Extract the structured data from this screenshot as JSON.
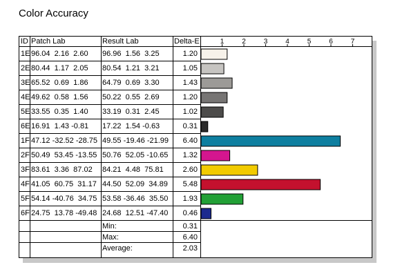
{
  "title": "Color Accuracy",
  "headers": {
    "id": "ID",
    "patch": "Patch Lab",
    "result": "Result Lab",
    "delta": "Delta-E"
  },
  "rows": [
    {
      "id": "1E",
      "patch": "96.04  2.16  2.60",
      "result": "96.96  1.56  3.25",
      "delta": "1.20",
      "color": "#f7f2ea"
    },
    {
      "id": "2E",
      "patch": "80.44  1.17  2.05",
      "result": "80.54  1.21  3.21",
      "delta": "1.05",
      "color": "#c6c4c1"
    },
    {
      "id": "3E",
      "patch": "65.52  0.69  1.86",
      "result": "64.79  0.69  3.30",
      "delta": "1.43",
      "color": "#9c9a97"
    },
    {
      "id": "4E",
      "patch": "49.62  0.58  1.56",
      "result": "50.22  0.55  2.69",
      "delta": "1.20",
      "color": "#777574"
    },
    {
      "id": "5E",
      "patch": "33.55  0.35  1.40",
      "result": "33.19  0.31  2.45",
      "delta": "1.02",
      "color": "#4c4b4a"
    },
    {
      "id": "6E",
      "patch": "16.91  1.43 -0.81",
      "result": "17.22  1.54 -0.63",
      "delta": "0.31",
      "color": "#2a2a2a"
    },
    {
      "id": "1F",
      "patch": "47.12 -32.52 -28.75",
      "result": "49.55 -19.46 -21.99",
      "delta": "6.40",
      "color": "#0e7fa0"
    },
    {
      "id": "2F",
      "patch": "50.49  53.45 -13.55",
      "result": "50.76  52.05 -10.65",
      "delta": "1.32",
      "color": "#d4168f"
    },
    {
      "id": "3F",
      "patch": "83.61  3.36  87.02",
      "result": "84.21  4.48  75.81",
      "delta": "2.60",
      "color": "#f2cb00"
    },
    {
      "id": "4F",
      "patch": "41.05  60.75  31.17",
      "result": "44.50  52.09  34.89",
      "delta": "5.48",
      "color": "#c4112e"
    },
    {
      "id": "5F",
      "patch": "54.14 -40.76  34.75",
      "result": "53.58 -36.46  35.50",
      "delta": "1.93",
      "color": "#22a036"
    },
    {
      "id": "6F",
      "patch": "24.75  13.78 -49.48",
      "result": "24.68  12.51 -47.40",
      "delta": "0.46",
      "color": "#1c2a8f"
    }
  ],
  "summary": [
    {
      "label": "Min:",
      "value": "0.31"
    },
    {
      "label": "Max:",
      "value": "6.40"
    },
    {
      "label": "Average:",
      "value": "2.03"
    }
  ],
  "chart_data": {
    "type": "bar",
    "orientation": "horizontal",
    "title": "Color Accuracy",
    "categories": [
      "1E",
      "2E",
      "3E",
      "4E",
      "5E",
      "6E",
      "1F",
      "2F",
      "3F",
      "4F",
      "5F",
      "6F"
    ],
    "values": [
      1.2,
      1.05,
      1.43,
      1.2,
      1.02,
      0.31,
      6.4,
      1.32,
      2.6,
      5.48,
      1.93,
      0.46
    ],
    "xlim": [
      0,
      7
    ],
    "x_ticks": [
      "1",
      "2",
      "3",
      "4",
      "5",
      "6",
      "7"
    ],
    "colors": [
      "#f7f2ea",
      "#c6c4c1",
      "#9c9a97",
      "#777574",
      "#4c4b4a",
      "#2a2a2a",
      "#0e7fa0",
      "#d4168f",
      "#f2cb00",
      "#c4112e",
      "#22a036",
      "#1c2a8f"
    ],
    "xlabel": "",
    "ylabel": "",
    "grid": false
  }
}
